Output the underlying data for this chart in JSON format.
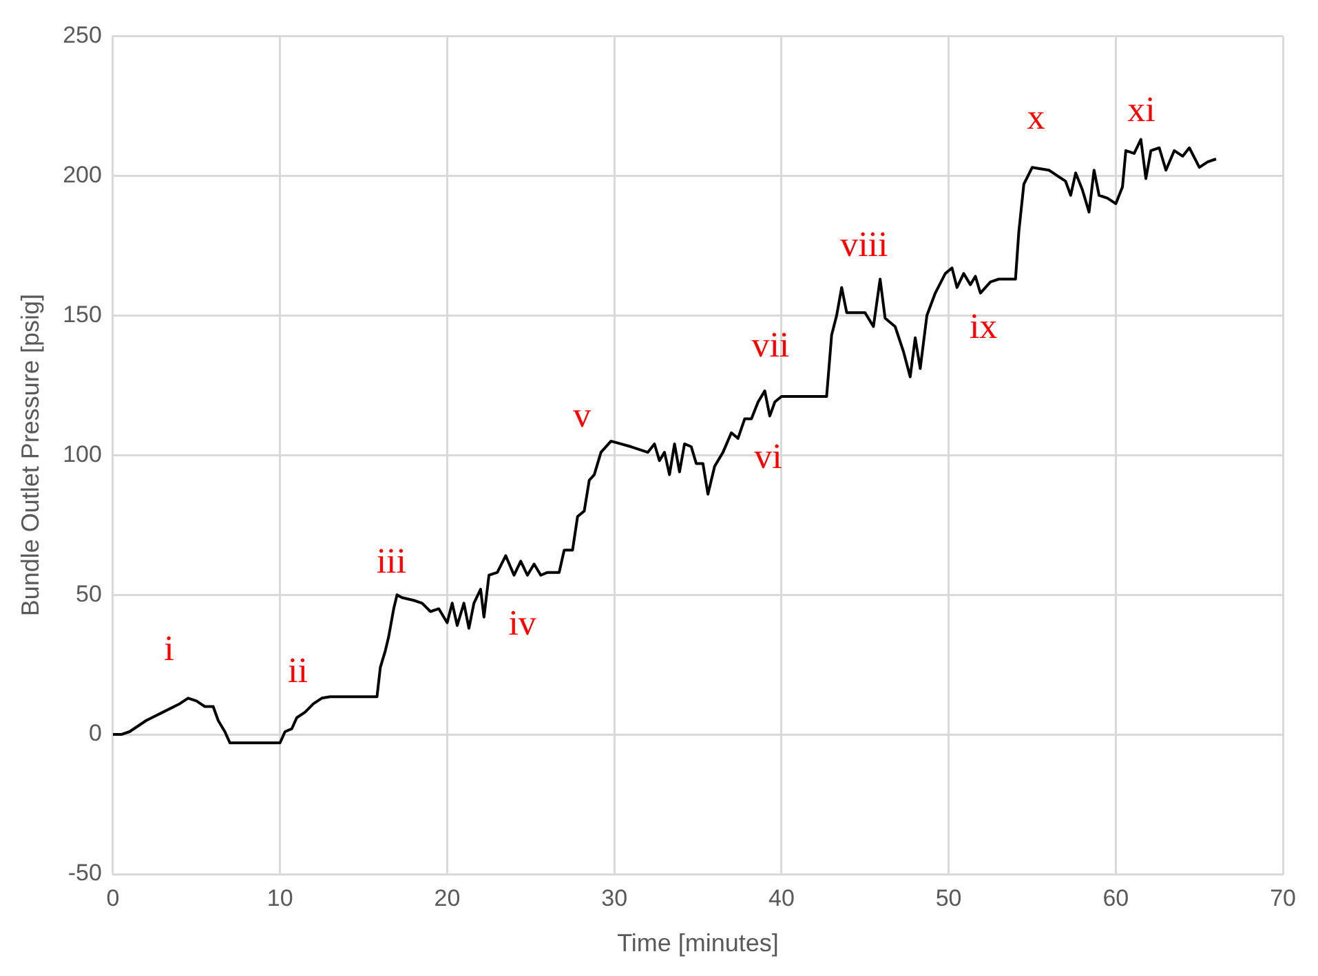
{
  "chart_data": {
    "type": "line",
    "xlabel": "Time [minutes]",
    "ylabel": "Bundle Outlet Pressure [psig]",
    "xlim": [
      0,
      70
    ],
    "xticks": [
      0,
      10,
      20,
      30,
      40,
      50,
      60,
      70
    ],
    "ylim": [
      -50,
      250
    ],
    "yticks": [
      -50,
      0,
      50,
      100,
      150,
      200,
      250
    ],
    "grid": true,
    "legend": false,
    "marker": "none",
    "line_style": "solid",
    "series": [
      {
        "color": "#000000",
        "x": [
          0,
          0.5,
          1,
          2,
          3,
          4,
          4.5,
          5,
          5.5,
          6,
          6.3,
          6.7,
          7,
          10,
          10.3,
          10.7,
          11,
          11.5,
          12,
          12.5,
          13,
          15.8,
          16,
          16.3,
          16.5,
          16.8,
          17,
          17.3,
          18,
          18.5,
          19,
          19.5,
          20,
          20.3,
          20.6,
          21,
          21.3,
          21.6,
          22,
          22.2,
          22.5,
          23,
          23.5,
          24,
          24.4,
          24.8,
          25.2,
          25.6,
          26,
          26.7,
          27,
          27.5,
          27.8,
          28.2,
          28.5,
          28.8,
          29.2,
          29.8,
          31,
          32,
          32.4,
          32.7,
          33,
          33.3,
          33.6,
          33.9,
          34.2,
          34.6,
          34.9,
          35.3,
          35.6,
          36,
          36.5,
          37,
          37.4,
          37.8,
          38.2,
          38.6,
          39,
          39.3,
          39.6,
          40,
          42.7,
          43,
          43.3,
          43.6,
          43.9,
          45,
          45.5,
          45.9,
          46.2,
          46.8,
          47.3,
          47.7,
          48,
          48.3,
          48.7,
          49.2,
          49.8,
          50.2,
          50.5,
          50.9,
          51.3,
          51.6,
          51.9,
          52.5,
          53,
          54,
          54.2,
          54.5,
          55,
          56,
          57,
          57.3,
          57.6,
          58,
          58.4,
          58.7,
          59,
          59.5,
          60,
          60.4,
          60.6,
          61.1,
          61.5,
          61.8,
          62.1,
          62.6,
          63,
          63.5,
          64,
          64.4,
          65,
          65.5,
          66
        ],
        "values": [
          0,
          0,
          1,
          5,
          8,
          11,
          13,
          12,
          10,
          10,
          5,
          1,
          -3,
          -3,
          1,
          2,
          6,
          8,
          11,
          13,
          13.5,
          13.5,
          24,
          30,
          35,
          45,
          50,
          49,
          48,
          47,
          44,
          45,
          40,
          47,
          39,
          47,
          38,
          47,
          52,
          42,
          57,
          58,
          64,
          57,
          62,
          57,
          61,
          57,
          58,
          58,
          66,
          66,
          78,
          80,
          91,
          93,
          101,
          105,
          103,
          101,
          104,
          98,
          101,
          93,
          104,
          94,
          104,
          103,
          97,
          97,
          86,
          96,
          101,
          108,
          106,
          113,
          113,
          119,
          123,
          114,
          119,
          121,
          121,
          143,
          150,
          160,
          151,
          151,
          146,
          163,
          149,
          146,
          137,
          128,
          142,
          131,
          150,
          158,
          165,
          167,
          160,
          165,
          161,
          164,
          158,
          162,
          163,
          163,
          180,
          197,
          203,
          202,
          198,
          193,
          201,
          195,
          187,
          202,
          193,
          192,
          190,
          196,
          209,
          208,
          213,
          199,
          209,
          210,
          202,
          209,
          207,
          210,
          203,
          205,
          206
        ]
      }
    ],
    "annotations": [
      "i",
      "ii",
      "iii",
      "iv",
      "v",
      "vi",
      "vii",
      "viii",
      "ix",
      "x",
      "xi"
    ]
  }
}
